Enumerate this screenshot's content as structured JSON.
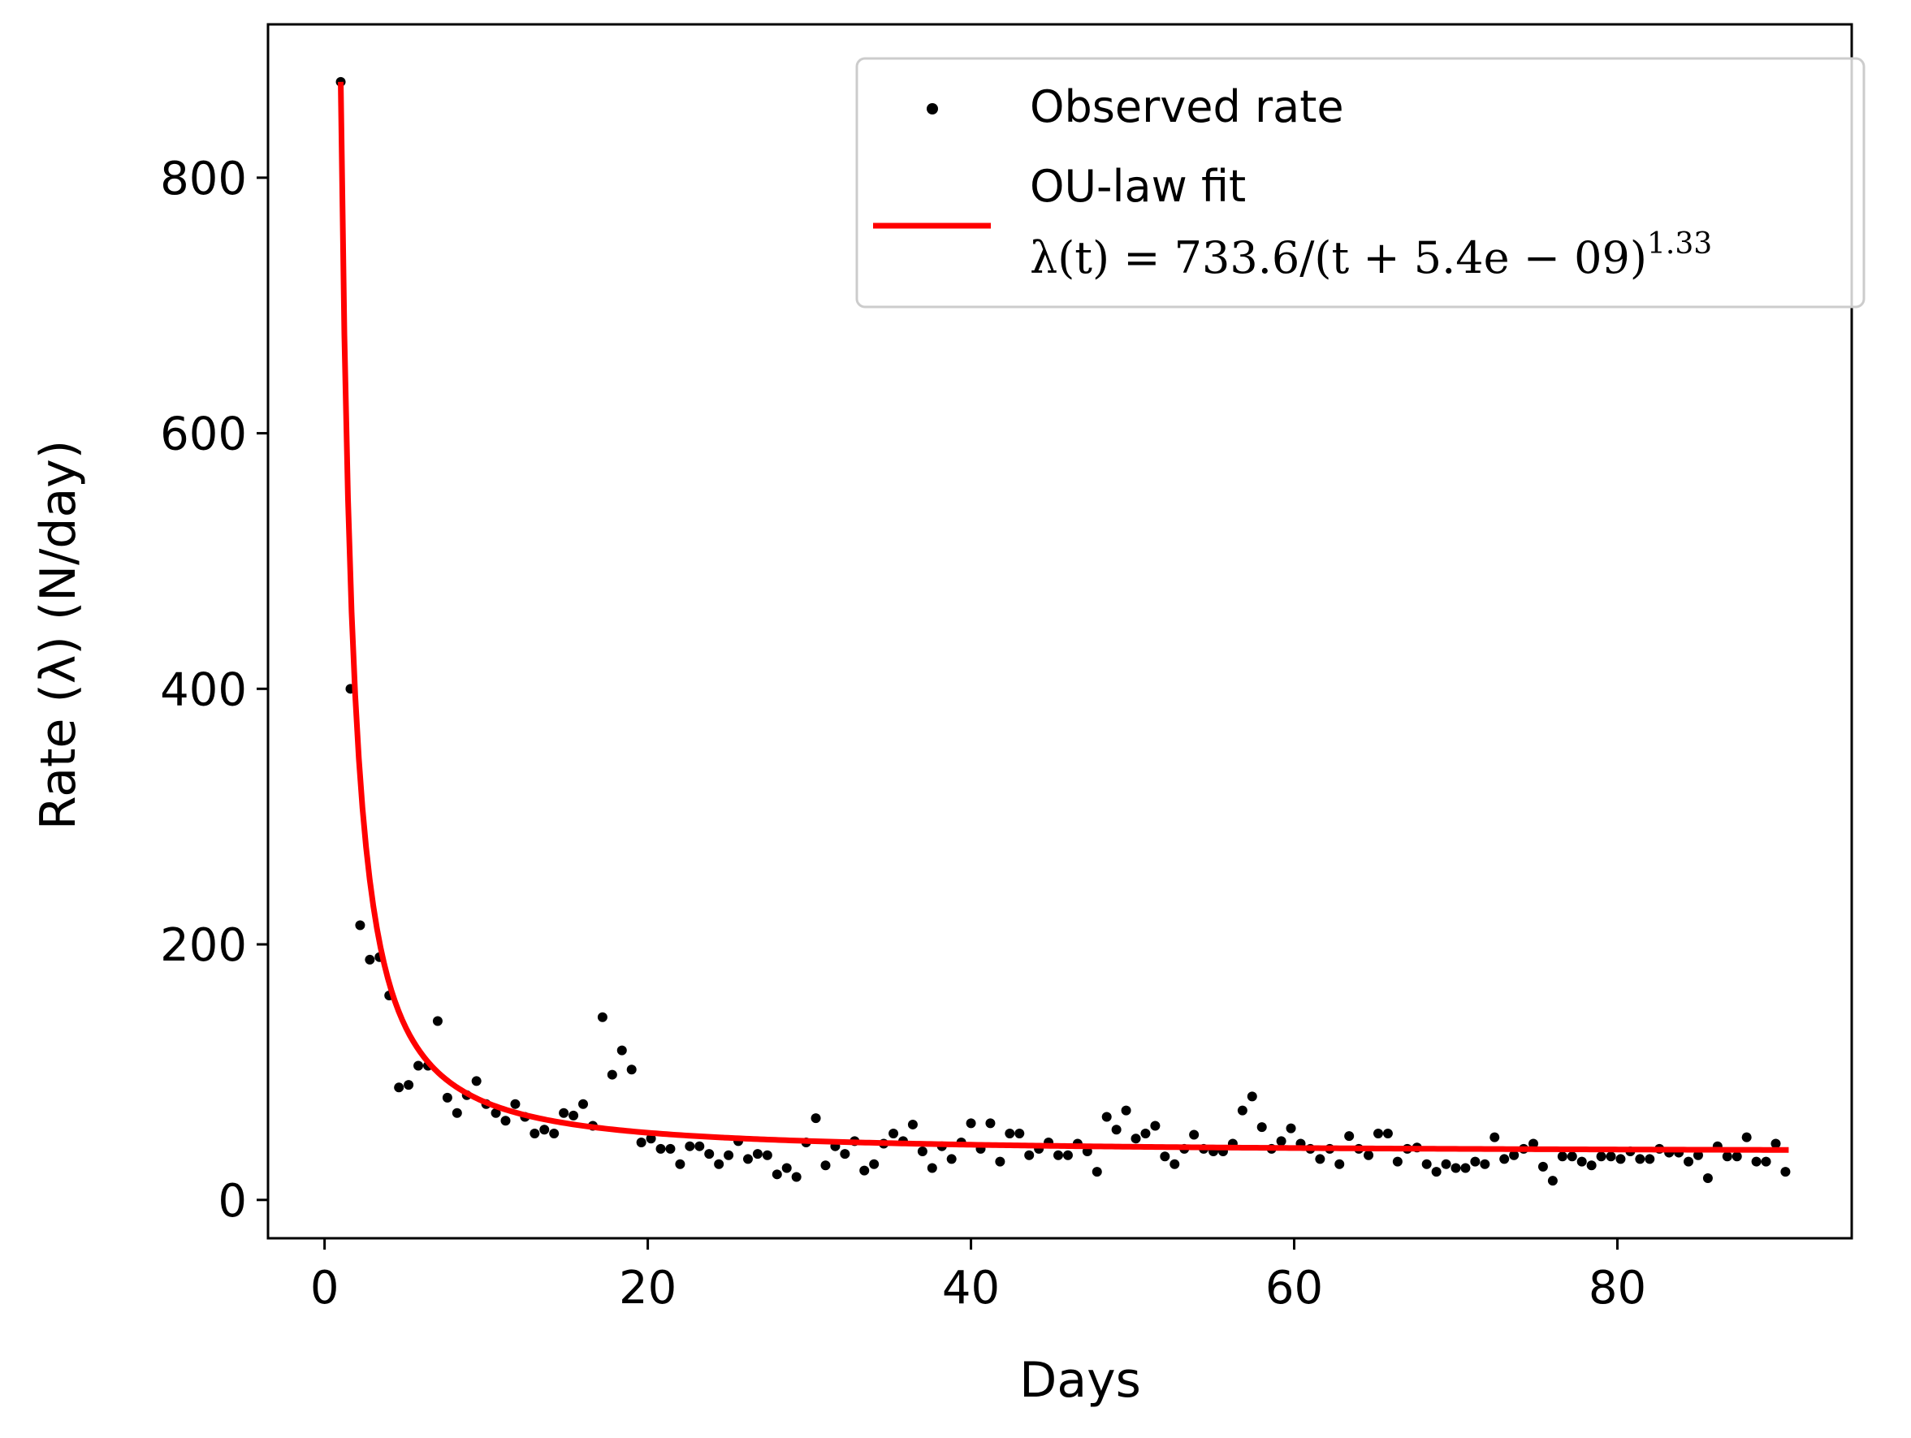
{
  "chart_data": {
    "type": "scatter",
    "title": "",
    "xlabel": "Days",
    "ylabel": "Rate (λ) (N/day)",
    "xlim": [
      -3.5,
      94.5
    ],
    "ylim": [
      -30,
      920
    ],
    "xticks": [
      0,
      20,
      40,
      60,
      80
    ],
    "yticks": [
      0,
      200,
      400,
      600,
      800
    ],
    "grid": false,
    "legend_position": "upper right",
    "colors": {
      "scatter": "#000000",
      "fit": "#ff0000"
    },
    "series": [
      {
        "name": "Observed rate",
        "kind": "scatter",
        "x": [
          1.0,
          1.6,
          2.2,
          2.8,
          3.4,
          4.0,
          4.6,
          5.2,
          5.8,
          6.4,
          7.0,
          7.6,
          8.2,
          8.8,
          9.4,
          10.0,
          10.6,
          11.2,
          11.8,
          12.4,
          13.0,
          13.6,
          14.2,
          14.8,
          15.4,
          16.0,
          16.6,
          17.2,
          17.8,
          18.4,
          19.0,
          19.6,
          20.2,
          20.8,
          21.4,
          22.0,
          22.6,
          23.2,
          23.8,
          24.4,
          25.0,
          25.6,
          26.2,
          26.8,
          27.4,
          28.0,
          28.6,
          29.2,
          29.8,
          30.4,
          31.0,
          31.6,
          32.2,
          32.8,
          33.4,
          34.0,
          34.6,
          35.2,
          35.8,
          36.4,
          37.0,
          37.6,
          38.2,
          38.8,
          39.4,
          40.0,
          40.6,
          41.2,
          41.8,
          42.4,
          43.0,
          43.6,
          44.2,
          44.8,
          45.4,
          46.0,
          46.6,
          47.2,
          47.8,
          48.4,
          49.0,
          49.6,
          50.2,
          50.8,
          51.4,
          52.0,
          52.6,
          53.2,
          53.8,
          54.4,
          55.0,
          55.6,
          56.2,
          56.8,
          57.4,
          58.0,
          58.6,
          59.2,
          59.8,
          60.4,
          61.0,
          61.6,
          62.2,
          62.8,
          63.4,
          64.0,
          64.6,
          65.2,
          65.8,
          66.4,
          67.0,
          67.6,
          68.2,
          68.8,
          69.4,
          70.0,
          70.6,
          71.2,
          71.8,
          72.4,
          73.0,
          73.6,
          74.2,
          74.8,
          75.4,
          76.0,
          76.6,
          77.2,
          77.8,
          78.4,
          79.0,
          79.6,
          80.2,
          80.8,
          81.4,
          82.0,
          82.6,
          83.2,
          83.8,
          84.4,
          85.0,
          85.6,
          86.2,
          86.8,
          87.4,
          88.0,
          88.6,
          89.2,
          89.8,
          90.4
        ],
        "y": [
          875,
          400,
          215,
          188,
          190,
          160,
          88,
          90,
          105,
          105,
          140,
          80,
          68,
          82,
          93,
          75,
          68,
          62,
          75,
          65,
          52,
          55,
          52,
          68,
          66,
          75,
          58,
          143,
          98,
          117,
          102,
          45,
          48,
          40,
          40,
          28,
          42,
          42,
          36,
          28,
          35,
          46,
          32,
          36,
          35,
          20,
          25,
          18,
          45,
          64,
          27,
          42,
          36,
          46,
          23,
          28,
          44,
          52,
          46,
          59,
          38,
          25,
          42,
          32,
          45,
          60,
          40,
          60,
          30,
          52,
          52,
          35,
          40,
          45,
          35,
          35,
          44,
          38,
          22,
          65,
          55,
          70,
          48,
          52,
          58,
          34,
          28,
          40,
          51,
          40,
          38,
          38,
          44,
          70,
          81,
          57,
          40,
          46,
          56,
          44,
          40,
          32,
          40,
          28,
          50,
          40,
          35,
          52,
          52,
          30,
          40,
          41,
          28,
          22,
          28,
          25,
          25,
          30,
          28,
          49,
          32,
          35,
          40,
          44,
          26,
          15,
          34,
          34,
          30,
          27,
          34,
          34,
          32,
          38,
          32,
          32,
          40,
          37,
          37,
          30,
          35,
          17,
          42,
          34,
          34,
          49,
          30,
          30,
          44,
          22
        ]
      },
      {
        "name": "OU-law fit",
        "kind": "line",
        "formula_a": 733.6,
        "formula_c": 5.4e-09,
        "formula_p": 1.33,
        "floor": 37,
        "x_range": [
          1.0,
          90.6
        ]
      }
    ],
    "legend": {
      "scatter_label": "Observed rate",
      "fit_label_line1": "OU-law fit",
      "fit_formula_prefix": "λ(t) = 733.6/(t + 5.4e − 09)",
      "fit_formula_exponent": "1.33"
    }
  }
}
